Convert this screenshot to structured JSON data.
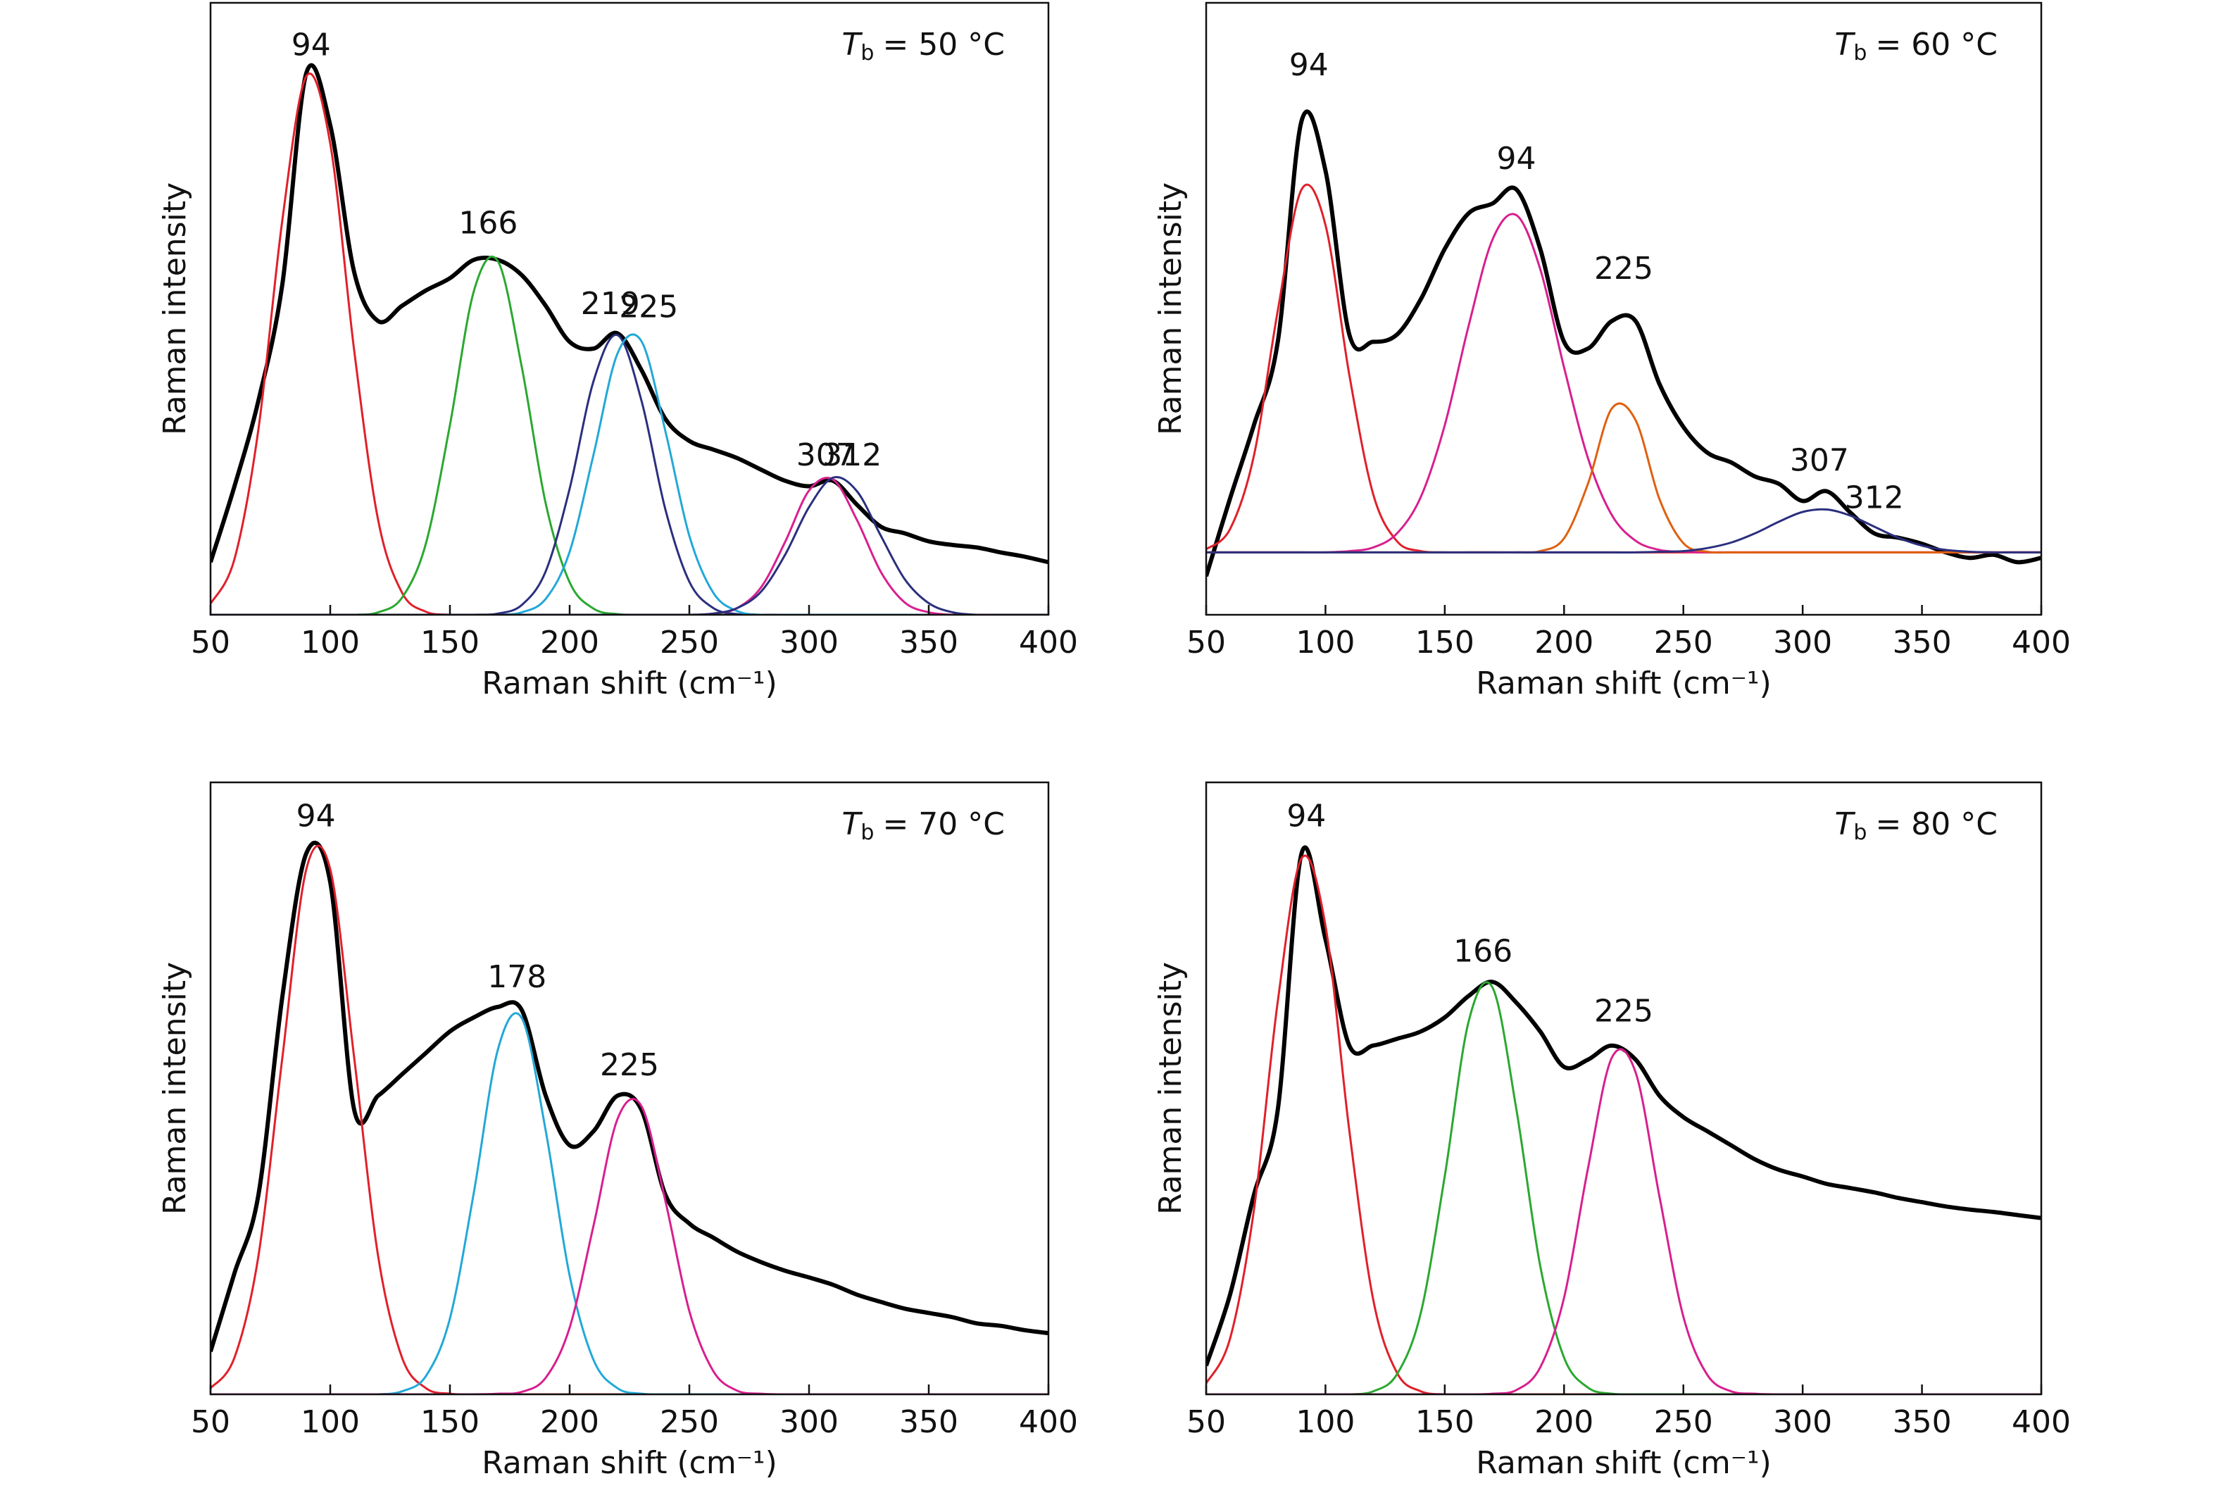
{
  "chart_data": [
    {
      "type": "line",
      "title": {
        "symbol": "T",
        "subscript": "b",
        "text": "= 50 °C"
      },
      "x_label": "Raman shift (cm⁻¹)",
      "y_label": "Raman intensity",
      "x": [
        50,
        60,
        70,
        80,
        90,
        100,
        110,
        120,
        130,
        140,
        150,
        160,
        170,
        180,
        190,
        200,
        210,
        220,
        230,
        240,
        250,
        260,
        270,
        280,
        290,
        300,
        310,
        320,
        330,
        340,
        350,
        360,
        370,
        380,
        390,
        400
      ],
      "xlim": [
        50,
        400
      ],
      "ylim": [
        0,
        100
      ],
      "xticks": [
        50,
        100,
        150,
        200,
        250,
        300,
        350,
        400
      ],
      "series": [
        {
          "color": "#000000",
          "values": [
            8.6,
            21,
            35,
            54,
            88.5,
            80,
            56,
            48,
            50.5,
            53,
            55,
            58,
            58,
            55.5,
            50.5,
            44.6,
            43.5,
            46,
            40,
            32,
            28.4,
            27,
            25.6,
            23.7,
            21.9,
            21,
            21.9,
            18,
            14.4,
            13.3,
            12,
            11.4,
            11,
            10.2,
            9.5,
            8.6
          ]
        },
        {
          "color": "#e0202a",
          "values": [
            1.8,
            9.1,
            30.3,
            64.5,
            88,
            77,
            43.2,
            15.5,
            3.6,
            0.5,
            0,
            0,
            0,
            0,
            0,
            0,
            0,
            0,
            0,
            0,
            0,
            0,
            0,
            0,
            0,
            0,
            0,
            0,
            0,
            0,
            0,
            0,
            0,
            0,
            0,
            0
          ]
        },
        {
          "color": "#2aa830",
          "values": [
            0,
            0,
            0,
            0,
            0,
            0,
            0,
            0.4,
            2.8,
            11.7,
            31,
            52.9,
            57.8,
            40.5,
            18.2,
            5.3,
            1,
            0.1,
            0,
            0,
            0,
            0,
            0,
            0,
            0,
            0,
            0,
            0,
            0,
            0,
            0,
            0,
            0,
            0,
            0,
            0
          ]
        },
        {
          "color": "#2b2f7e",
          "values": [
            0,
            0,
            0,
            0,
            0,
            0,
            0,
            0,
            0,
            0,
            0,
            0,
            0.2,
            1.6,
            7.1,
            20.6,
            38.2,
            45.7,
            35,
            17.2,
            5.4,
            1.1,
            0.1,
            0,
            0,
            0,
            0,
            0,
            0,
            0,
            0,
            0,
            0,
            0,
            0,
            0
          ]
        },
        {
          "color": "#22a8d8",
          "values": [
            0,
            0,
            0,
            0,
            0,
            0,
            0,
            0,
            0,
            0,
            0,
            0,
            0,
            0.4,
            2.6,
            10.3,
            26.2,
            42.7,
            44.7,
            30,
            12.9,
            3.6,
            0.6,
            0,
            0,
            0,
            0,
            0,
            0,
            0,
            0,
            0,
            0,
            0,
            0,
            0
          ]
        },
        {
          "color": "#d81f8f",
          "values": [
            0,
            0,
            0,
            0,
            0,
            0,
            0,
            0,
            0,
            0,
            0,
            0,
            0,
            0,
            0,
            0,
            0,
            0,
            0,
            0,
            0,
            0.2,
            1.1,
            4.5,
            11.9,
            20.3,
            22.1,
            15.5,
            7,
            2,
            0.4,
            0,
            0,
            0,
            0,
            0
          ]
        },
        {
          "color": "#2b2f7e",
          "values": [
            0,
            0,
            0,
            0,
            0,
            0,
            0,
            0,
            0,
            0,
            0,
            0,
            0,
            0,
            0,
            0,
            0,
            0,
            0,
            0,
            0,
            0.2,
            1.1,
            3.8,
            9.8,
            17.6,
            22.4,
            20.2,
            12.9,
            5.8,
            1.9,
            0.4,
            0,
            0,
            0,
            0
          ]
        }
      ],
      "annotations": [
        {
          "text": "94",
          "x": 92,
          "y": 92.8
        },
        {
          "text": "166",
          "x": 166,
          "y": 63.7
        },
        {
          "text": "219",
          "x": 217,
          "y": 50.5
        },
        {
          "text": "225",
          "x": 233,
          "y": 50
        },
        {
          "text": "307",
          "x": 307,
          "y": 25.8
        },
        {
          "text": "312",
          "x": 318,
          "y": 25.8
        }
      ]
    },
    {
      "type": "line",
      "title": {
        "symbol": "T",
        "subscript": "b",
        "text": "= 60 °C"
      },
      "x_label": "Raman shift (cm⁻¹)",
      "y_label": "Raman intensity",
      "x": [
        50,
        60,
        70,
        80,
        90,
        100,
        110,
        120,
        130,
        140,
        150,
        160,
        170,
        180,
        190,
        200,
        210,
        220,
        230,
        240,
        250,
        260,
        270,
        280,
        290,
        300,
        310,
        320,
        330,
        340,
        350,
        360,
        370,
        380,
        390,
        400
      ],
      "xlim": [
        50,
        400
      ],
      "ylim": [
        0,
        100
      ],
      "xticks": [
        50,
        100,
        150,
        200,
        250,
        300,
        350,
        400
      ],
      "series": [
        {
          "color": "#000000",
          "values": [
            6.3,
            19,
            31,
            44.6,
            80.7,
            72.6,
            45.8,
            44.6,
            45.8,
            51.6,
            59.8,
            65.6,
            67.2,
            69.5,
            59.8,
            44.6,
            43.5,
            48,
            48,
            37.7,
            30.7,
            26.5,
            24.9,
            22.6,
            21.4,
            18.6,
            20.2,
            16.7,
            13.3,
            12.6,
            11.6,
            10.2,
            9.3,
            9.8,
            8.6,
            9.3
          ]
        },
        {
          "color": "#e0202a",
          "values": [
            10.7,
            14,
            26,
            49.7,
            69.5,
            63.7,
            39.2,
            19.7,
            12,
            10.4,
            10.2,
            10.2,
            10.2,
            10.2,
            10.2,
            10.2,
            10.2,
            10.2,
            10.2,
            10.2,
            10.2,
            10.2,
            10.2,
            10.2,
            10.2,
            10.2,
            10.2,
            10.2,
            10.2,
            10.2,
            10.2,
            10.2,
            10.2,
            10.2,
            10.2,
            10.2
          ]
        },
        {
          "color": "#d81f8f",
          "values": [
            10.2,
            10.2,
            10.2,
            10.2,
            10.2,
            10.2,
            10.4,
            11,
            13.3,
            19.3,
            31,
            47.2,
            61.3,
            65.3,
            56.5,
            40.4,
            25.6,
            16.3,
            12.1,
            10.6,
            10.3,
            10.2,
            10.2,
            10.2,
            10.2,
            10.2,
            10.2,
            10.2,
            10.2,
            10.2,
            10.2,
            10.2,
            10.2,
            10.2,
            10.2,
            10.2
          ]
        },
        {
          "color": "#e06010",
          "values": [
            10.2,
            10.2,
            10.2,
            10.2,
            10.2,
            10.2,
            10.2,
            10.2,
            10.2,
            10.2,
            10.2,
            10.2,
            10.2,
            10.2,
            10.4,
            12.5,
            21.4,
            33.7,
            31.8,
            18.9,
            11.7,
            10.3,
            10.2,
            10.2,
            10.2,
            10.2,
            10.2,
            10.2,
            10.2,
            10.2,
            10.2,
            10.2,
            10.2,
            10.2,
            10.2,
            10.2
          ]
        },
        {
          "color": "#2b2f7e",
          "values": [
            10.2,
            10.2,
            10.2,
            10.2,
            10.2,
            10.2,
            10.2,
            10.2,
            10.2,
            10.2,
            10.2,
            10.2,
            10.2,
            10.2,
            10.2,
            10.2,
            10.2,
            10.2,
            10.2,
            10.3,
            10.4,
            10.9,
            11.8,
            13.3,
            15.2,
            16.8,
            17.2,
            16.2,
            14.4,
            12.6,
            11.3,
            10.6,
            10.3,
            10.2,
            10.2,
            10.2
          ]
        }
      ],
      "annotations": [
        {
          "text": "94",
          "x": 93,
          "y": 89.5
        },
        {
          "text": "94",
          "x": 180,
          "y": 74.2
        },
        {
          "text": "225",
          "x": 225,
          "y": 56.3
        },
        {
          "text": "307",
          "x": 307,
          "y": 24.9
        },
        {
          "text": "312",
          "x": 330,
          "y": 18.8
        }
      ]
    },
    {
      "type": "line",
      "title": {
        "symbol": "T",
        "subscript": "b",
        "text": "= 70 °C"
      },
      "x_label": "Raman shift (cm⁻¹)",
      "y_label": "Raman intensity",
      "x": [
        50,
        60,
        70,
        80,
        90,
        100,
        110,
        120,
        130,
        140,
        150,
        160,
        170,
        180,
        190,
        200,
        210,
        220,
        230,
        240,
        250,
        260,
        270,
        280,
        290,
        300,
        310,
        320,
        330,
        340,
        350,
        360,
        370,
        380,
        390,
        400
      ],
      "xlim": [
        50,
        400
      ],
      "ylim": [
        0,
        100
      ],
      "xticks": [
        50,
        100,
        150,
        200,
        250,
        300,
        350,
        400
      ],
      "series": [
        {
          "color": "#000000",
          "values": [
            7,
            19.8,
            32.6,
            65,
            88.4,
            83.7,
            46.5,
            48.8,
            52.3,
            55.8,
            59.3,
            61.6,
            63.3,
            62.8,
            48.8,
            40.7,
            43,
            48.8,
            46.5,
            32.6,
            27.9,
            25.6,
            23.3,
            21.6,
            20.2,
            19.1,
            17.9,
            16.3,
            15.1,
            14,
            13.3,
            12.6,
            11.6,
            11.2,
            10.5,
            10
          ]
        },
        {
          "color": "#e0202a",
          "values": [
            1,
            6,
            22.6,
            55,
            85.8,
            85.8,
            55,
            22.6,
            6,
            1,
            0.1,
            0,
            0,
            0,
            0,
            0,
            0,
            0,
            0,
            0,
            0,
            0,
            0,
            0,
            0,
            0,
            0,
            0,
            0,
            0,
            0,
            0,
            0,
            0,
            0,
            0
          ]
        },
        {
          "color": "#22a8d8",
          "values": [
            0,
            0,
            0,
            0,
            0,
            0,
            0,
            0,
            0.5,
            3,
            12.4,
            33,
            56.3,
            61.5,
            43.1,
            19.4,
            5.6,
            1,
            0.1,
            0,
            0,
            0,
            0,
            0,
            0,
            0,
            0,
            0,
            0,
            0,
            0,
            0,
            0,
            0,
            0,
            0
          ]
        },
        {
          "color": "#d81f8f",
          "values": [
            0,
            0,
            0,
            0,
            0,
            0,
            0,
            0,
            0,
            0,
            0,
            0,
            0.1,
            0.4,
            2.7,
            10.9,
            27.6,
            45,
            47.1,
            31.6,
            13.6,
            3.8,
            0.6,
            0.1,
            0,
            0,
            0,
            0,
            0,
            0,
            0,
            0,
            0,
            0,
            0,
            0
          ]
        }
      ],
      "annotations": [
        {
          "text": "94",
          "x": 94,
          "y": 94.2
        },
        {
          "text": "178",
          "x": 178,
          "y": 67.9
        },
        {
          "text": "225",
          "x": 225,
          "y": 53.5
        }
      ]
    },
    {
      "type": "line",
      "title": {
        "symbol": "T",
        "subscript": "b",
        "text": "= 80 °C"
      },
      "x_label": "Raman shift (cm⁻¹)",
      "y_label": "Raman intensity",
      "x": [
        50,
        60,
        70,
        80,
        90,
        100,
        110,
        120,
        130,
        140,
        150,
        160,
        170,
        180,
        190,
        200,
        210,
        220,
        230,
        240,
        250,
        260,
        270,
        280,
        290,
        300,
        310,
        320,
        330,
        340,
        350,
        360,
        370,
        380,
        390,
        400
      ],
      "xlim": [
        50,
        400
      ],
      "ylim": [
        0,
        100
      ],
      "xticks": [
        50,
        100,
        150,
        200,
        250,
        300,
        350,
        400
      ],
      "series": [
        {
          "color": "#000000",
          "values": [
            4.7,
            16.3,
            32.6,
            46.5,
            88.4,
            74.4,
            57,
            57,
            58.1,
            59.3,
            61.6,
            65.1,
            67.4,
            64,
            59.3,
            53.5,
            54.7,
            57,
            54.7,
            48.8,
            45.3,
            43,
            40.7,
            38.4,
            36.7,
            35.6,
            34.4,
            33.7,
            33,
            32.1,
            31.4,
            30.7,
            30.2,
            29.8,
            29.3,
            28.8
          ]
        },
        {
          "color": "#e0202a",
          "values": [
            1.8,
            9.1,
            30.1,
            64.2,
            87.6,
            76.6,
            43.1,
            15.5,
            3.5,
            0.5,
            0,
            0,
            0,
            0,
            0,
            0,
            0,
            0,
            0,
            0,
            0,
            0,
            0,
            0,
            0,
            0,
            0,
            0,
            0,
            0,
            0,
            0,
            0,
            0,
            0,
            0
          ]
        },
        {
          "color": "#2aa830",
          "values": [
            0,
            0,
            0,
            0,
            0,
            0,
            0,
            0.5,
            3.3,
            13.4,
            35.7,
            60.9,
            66.5,
            46.6,
            21,
            6,
            1.1,
            0.1,
            0,
            0,
            0,
            0,
            0,
            0,
            0,
            0,
            0,
            0,
            0,
            0,
            0,
            0,
            0,
            0,
            0,
            0
          ]
        },
        {
          "color": "#d81f8f",
          "values": [
            0,
            0,
            0,
            0,
            0,
            0,
            0,
            0,
            0,
            0,
            0,
            0,
            0.1,
            0.7,
            4.4,
            15.8,
            36.9,
            55,
            52.6,
            32.3,
            12.7,
            3.2,
            0.5,
            0.1,
            0,
            0,
            0,
            0,
            0,
            0,
            0,
            0,
            0,
            0,
            0,
            0
          ]
        }
      ],
      "annotations": [
        {
          "text": "94",
          "x": 92,
          "y": 94.2
        },
        {
          "text": "166",
          "x": 166,
          "y": 72.1
        },
        {
          "text": "225",
          "x": 225,
          "y": 62.3
        }
      ]
    }
  ]
}
